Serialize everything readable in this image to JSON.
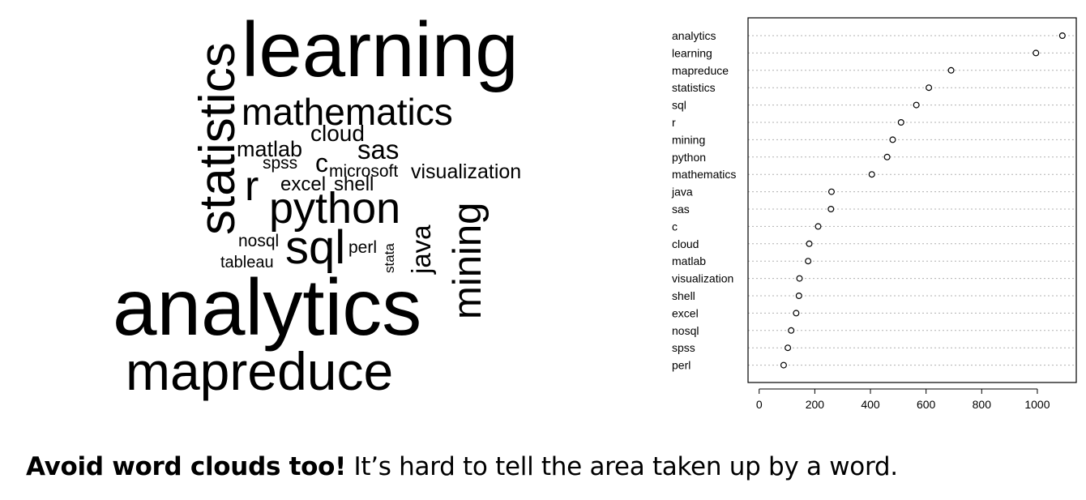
{
  "word_cloud": {
    "words": [
      "learning",
      "statistics",
      "mathematics",
      "cloud",
      "matlab",
      "sas",
      "spss",
      "c",
      "microsoft",
      "visualization",
      "r",
      "excel",
      "shell",
      "python",
      "nosql",
      "sql",
      "perl",
      "stata",
      "java",
      "mining",
      "tableau",
      "analytics",
      "mapreduce"
    ]
  },
  "chart_data": {
    "type": "scatter",
    "categories": [
      "analytics",
      "learning",
      "mapreduce",
      "statistics",
      "sql",
      "r",
      "mining",
      "python",
      "mathematics",
      "java",
      "sas",
      "c",
      "cloud",
      "matlab",
      "visualization",
      "shell",
      "excel",
      "nosql",
      "spss",
      "perl"
    ],
    "values": [
      1090,
      995,
      690,
      610,
      565,
      510,
      480,
      460,
      405,
      260,
      258,
      212,
      180,
      176,
      145,
      143,
      133,
      115,
      103,
      88
    ],
    "xlim": [
      -40,
      1140
    ],
    "xticks": [
      0,
      200,
      400,
      600,
      800,
      1000
    ],
    "title": "",
    "xlabel": "",
    "ylabel": "",
    "grid": "dotted horizontal"
  },
  "caption": {
    "bold": "Avoid word clouds too!",
    "text": " It’s hard to tell the area taken up by a word."
  }
}
